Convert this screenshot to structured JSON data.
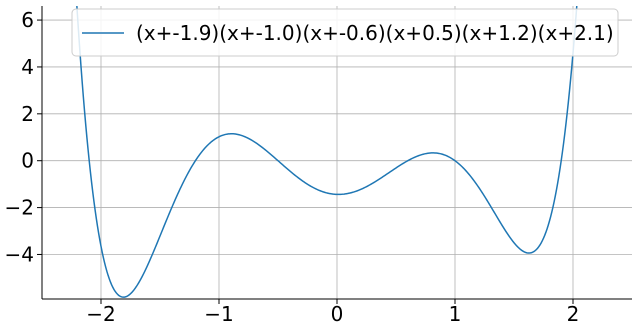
{
  "chart_data": {
    "type": "line",
    "title": "",
    "xlabel": "",
    "ylabel": "",
    "xlim": [
      -2.5,
      2.5
    ],
    "ylim": [
      -5.9,
      6.6
    ],
    "x_ticks": [
      -2,
      -1,
      0,
      1,
      2
    ],
    "x_tick_labels": [
      "−2",
      "−1",
      "0",
      "1",
      "2"
    ],
    "y_ticks": [
      -4,
      -2,
      0,
      2,
      4,
      6
    ],
    "y_tick_labels": [
      "−4",
      "−2",
      "0",
      "2",
      "4",
      "6"
    ],
    "grid": true,
    "legend_position": "upper-right",
    "series": [
      {
        "name": "(x+-1.9)(x+-1.0)(x+-0.6)(x+0.5)(x+1.2)(x+2.1)",
        "color": "#1f77b4",
        "roots": [
          1.9,
          1.0,
          0.6,
          -0.5,
          -1.2,
          -2.1
        ],
        "x": [
          -2.2,
          -2.1,
          -2.0,
          -1.9,
          -1.8,
          -1.6,
          -1.4,
          -1.2,
          -1.0,
          -0.9,
          -0.8,
          -0.6,
          -0.4,
          -0.2,
          0.0,
          0.2,
          0.4,
          0.6,
          0.8,
          1.0,
          1.2,
          1.4,
          1.6,
          1.7,
          1.8,
          1.9,
          2.0
        ],
        "y": [
          7.6,
          0.0,
          -4.3,
          -5.4,
          -5.4,
          -3.7,
          -1.4,
          0.0,
          1.1,
          1.15,
          1.1,
          0.5,
          -0.4,
          -1.1,
          -1.4,
          -1.1,
          -0.4,
          0.0,
          0.3,
          0.0,
          -1.5,
          -3.1,
          -3.7,
          -3.2,
          -1.9,
          0.0,
          5.3
        ]
      }
    ]
  }
}
